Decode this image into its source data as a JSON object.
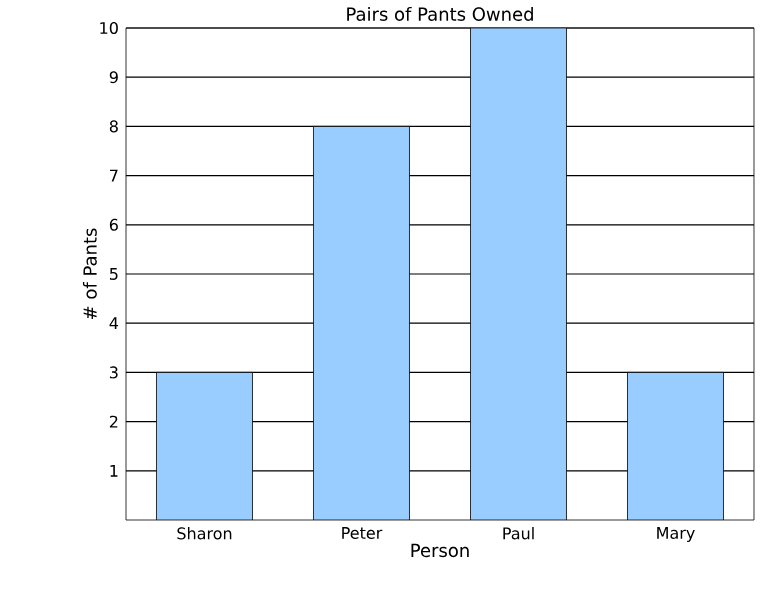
{
  "chart_data": {
    "type": "bar",
    "title": "Pairs of Pants Owned",
    "xlabel": "Person",
    "ylabel": "# of Pants",
    "categories": [
      "Sharon",
      "Peter",
      "Paul",
      "Mary"
    ],
    "values": [
      3,
      8,
      10,
      3
    ],
    "color": "#99ccff",
    "ylim": [
      0,
      10
    ],
    "yticks": [
      1,
      2,
      3,
      4,
      5,
      6,
      7,
      8,
      9,
      10
    ],
    "grid": "y"
  }
}
